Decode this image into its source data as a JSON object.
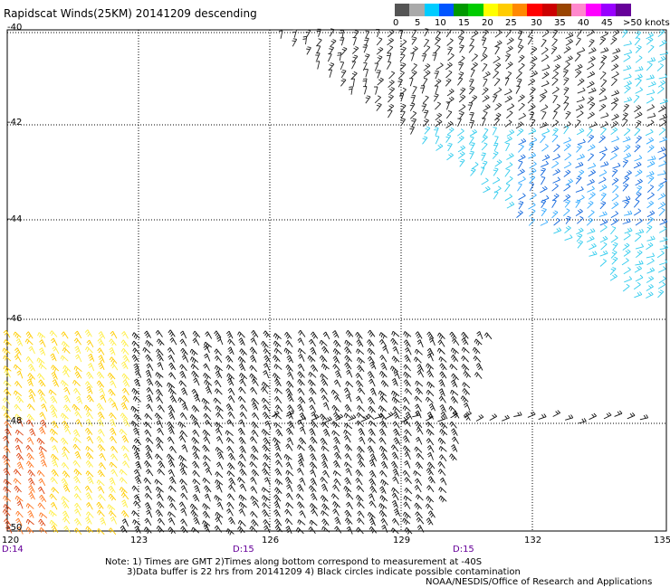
{
  "title": "Rapidscat Winds(25KM) 20141209 descending",
  "scale": {
    "colors": [
      "#555555",
      "#aaaaaa",
      "#00ccff",
      "#0055ff",
      "#009900",
      "#00cc00",
      "#ffff00",
      "#ffcc00",
      "#ff8800",
      "#ff0000",
      "#cc0000",
      "#994400",
      "#ff88cc",
      "#ff00ff",
      "#9900ff",
      "#660099"
    ],
    "labels": [
      "0",
      "5",
      "10",
      "15",
      "20",
      "25",
      "30",
      "35",
      "40",
      "45",
      ">50 knots"
    ]
  },
  "axes": {
    "lat_labels": [
      "-40",
      "-42",
      "-44",
      "-46",
      "-48",
      "-50"
    ],
    "lon_labels": [
      "120",
      "123",
      "126",
      "129",
      "132",
      "135"
    ]
  },
  "times": [
    "D:14",
    "D:15",
    "D:15"
  ],
  "notes": [
    "Note: 1) Times are GMT 2)Times along bottom correspond to measurement at -40S",
    "3)Data buffer is 22 hrs from 20141209 4) Black circles indicate possible contamination"
  ],
  "credit": "NOAA/NESDIS/Office of Research and Applications",
  "chart_data": {
    "type": "map",
    "xlim": [
      120,
      135
    ],
    "ylim": [
      -50,
      -40
    ],
    "grid": true,
    "regions": [
      {
        "lon": [
          126,
          135
        ],
        "lat": [
          -45.5,
          -40
        ],
        "speed_range_knots": [
          5,
          15
        ]
      },
      {
        "lon": [
          120,
          131
        ],
        "lat": [
          -50,
          -46.2
        ],
        "speed_range_knots": [
          0,
          30
        ]
      }
    ]
  }
}
